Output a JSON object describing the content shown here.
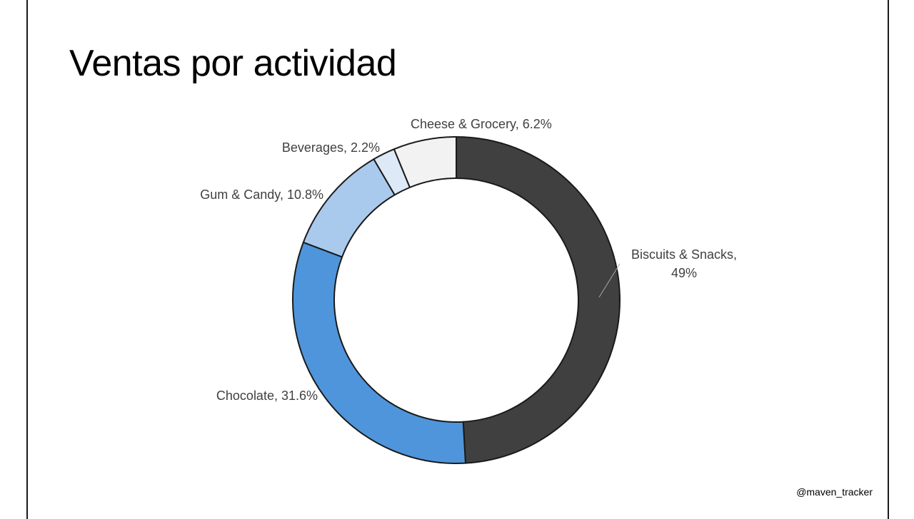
{
  "slide": {
    "title": "Ventas por actividad",
    "handle": "@maven_tracker"
  },
  "chart_data": {
    "type": "pie",
    "style": "donut",
    "title": "",
    "categories": [
      "Biscuits & Snacks",
      "Chocolate",
      "Gum & Candy",
      "Beverages",
      "Cheese & Grocery"
    ],
    "values": [
      49,
      31.6,
      10.8,
      2.2,
      6.2
    ],
    "labels": [
      [
        "Biscuits & Snacks,",
        "49%"
      ],
      [
        "Chocolate, 31.6%"
      ],
      [
        "Gum & Candy, 10.8%"
      ],
      [
        "Beverages, 2.2%"
      ],
      [
        "Cheese & Grocery, 6.2%"
      ]
    ],
    "colors": [
      "#404040",
      "#4f95db",
      "#a9caed",
      "#dde9f7",
      "#f2f2f2"
    ],
    "stroke_color": "#1a1a1a",
    "start_angle": "12 o'clock",
    "direction": "clockwise",
    "legend": "none"
  }
}
